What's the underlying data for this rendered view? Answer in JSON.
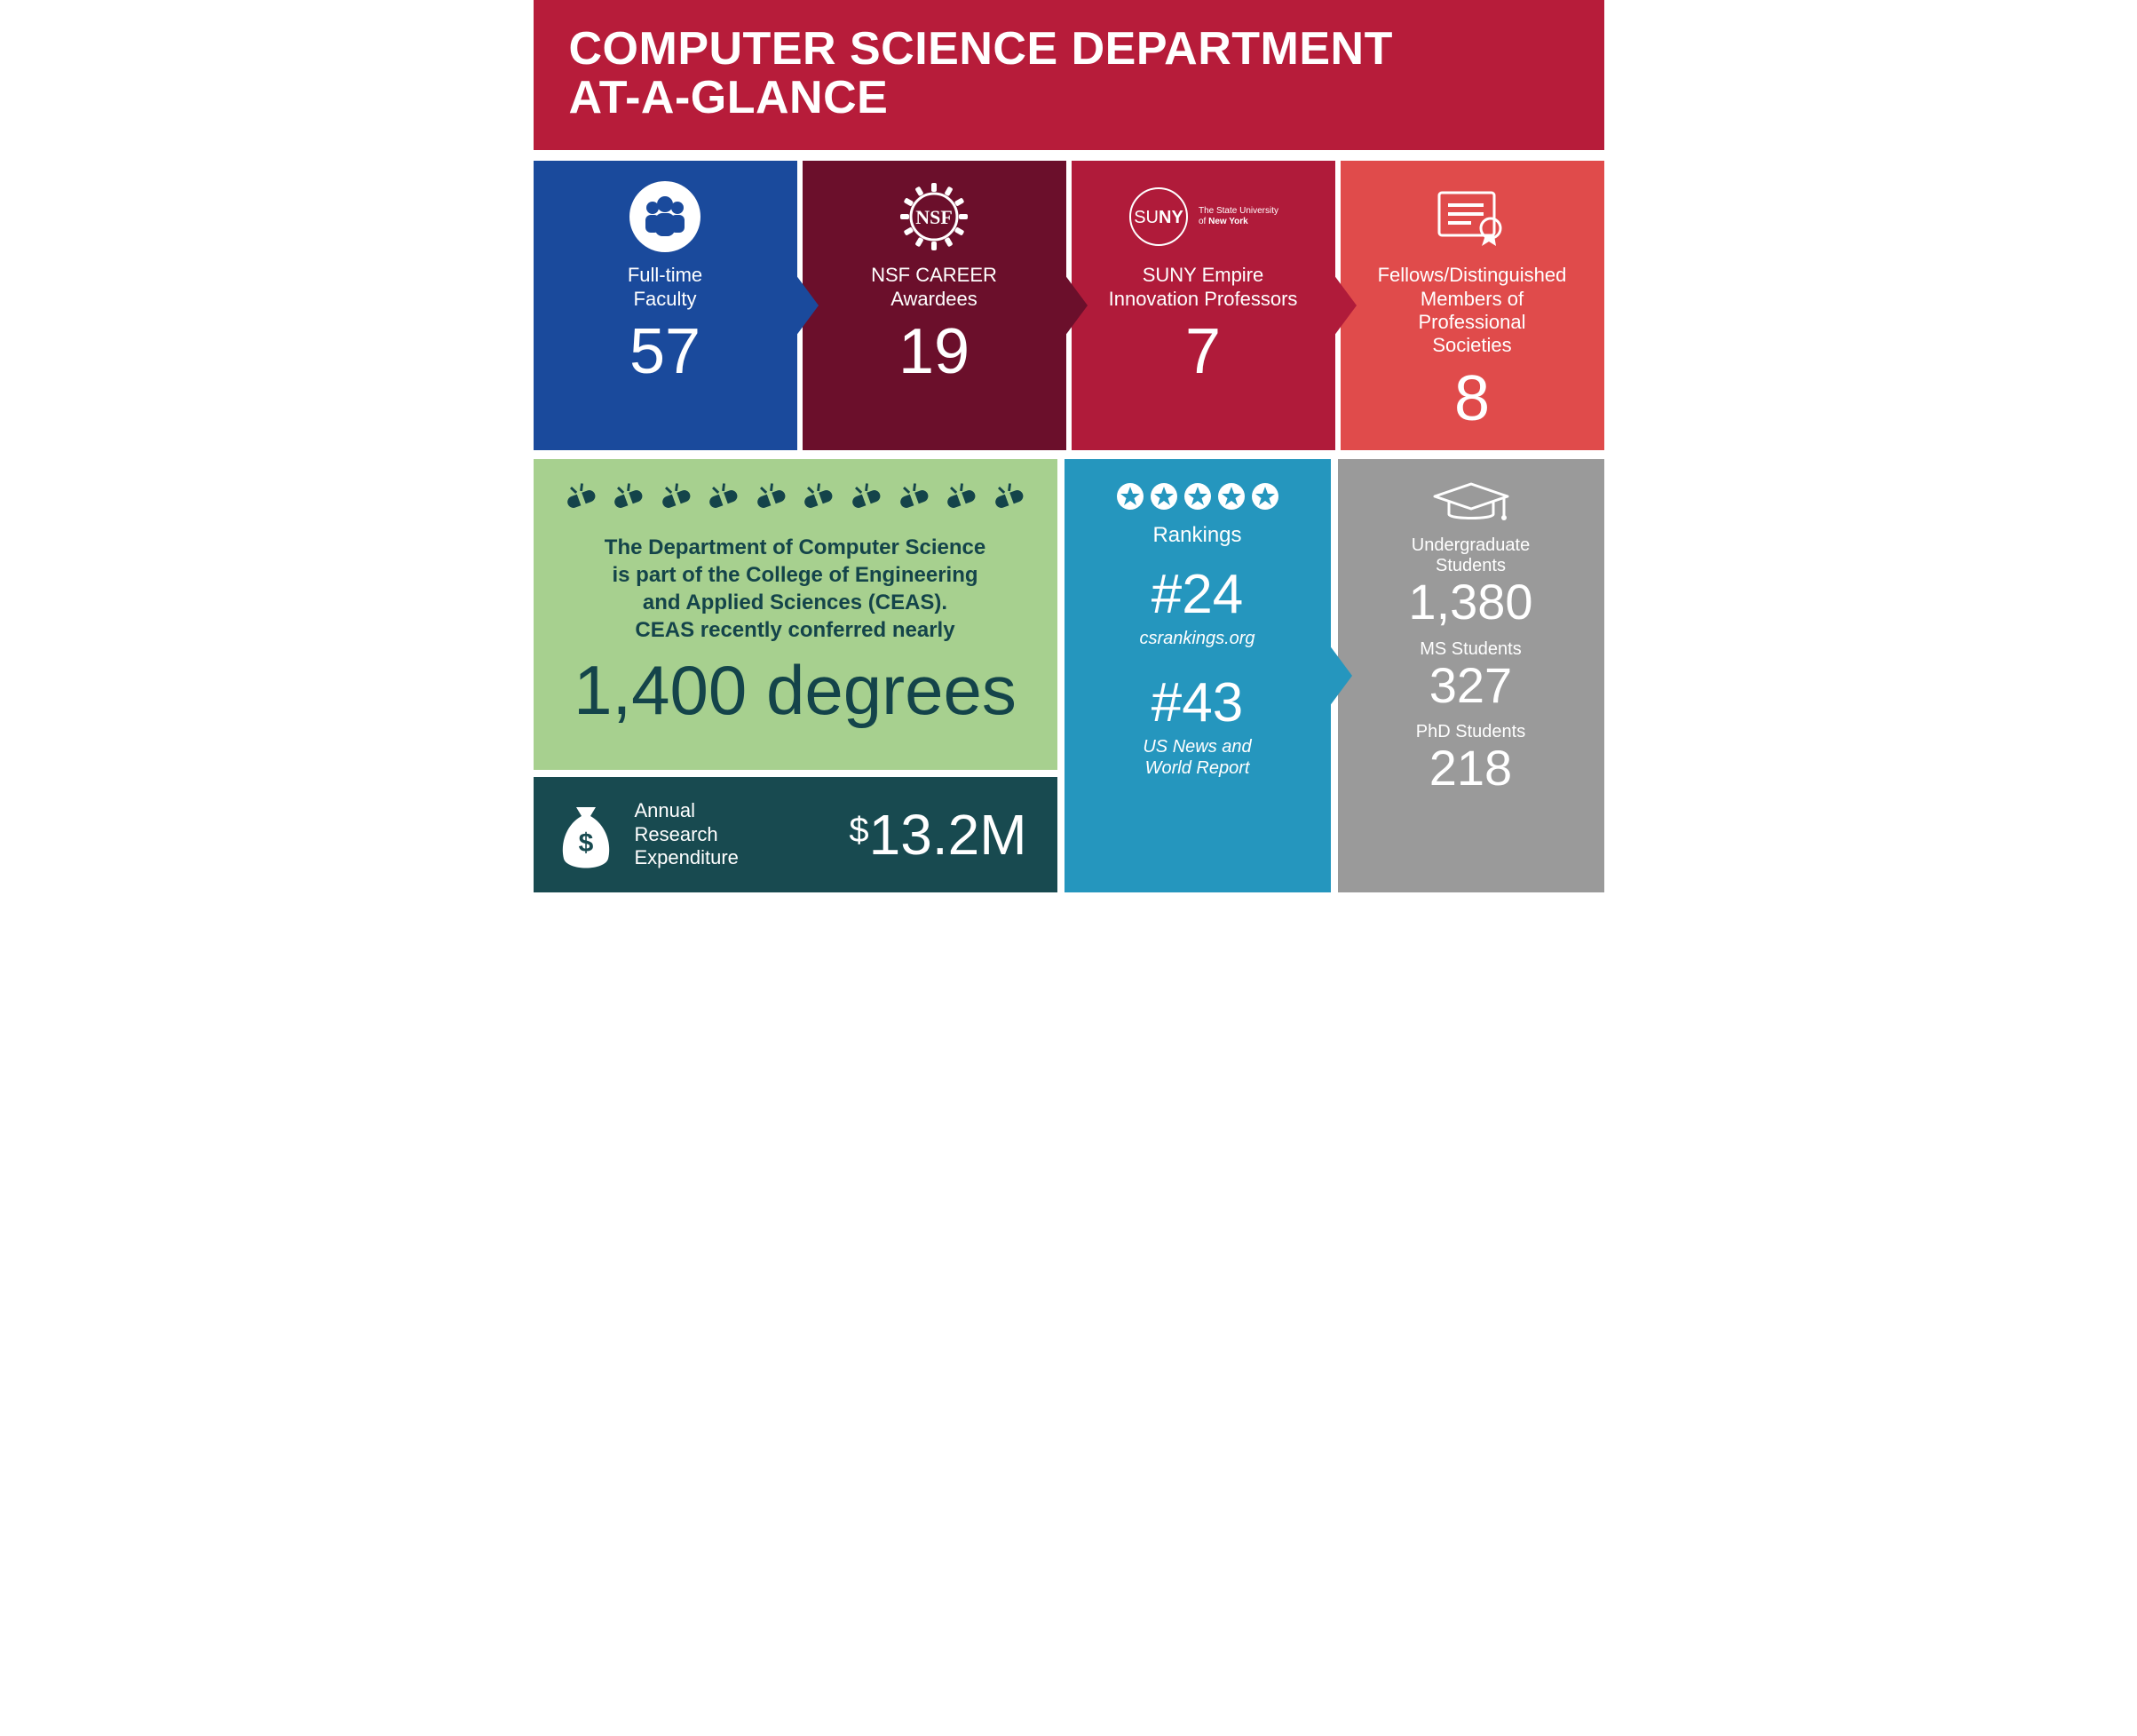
{
  "colors": {
    "header_bg": "#b71c3a",
    "card1_bg": "#1a4a9c",
    "card2_bg": "#6b0f2b",
    "card3_bg": "#b01b3a",
    "card4_bg": "#e04b4b",
    "degrees_bg": "#a7d08f",
    "degrees_text": "#14444a",
    "expend_bg": "#184a50",
    "rank_bg": "#2596be",
    "students_bg": "#9a9a9a"
  },
  "header": {
    "title": "COMPUTER SCIENCE DEPARTMENT\nAT-A-GLANCE"
  },
  "cards": [
    {
      "icon": "people-icon",
      "label": "Full-time\nFaculty",
      "value": "57"
    },
    {
      "icon": "nsf-icon",
      "label": "NSF CAREER\nAwardees",
      "value": "19"
    },
    {
      "icon": "suny-icon",
      "suny_sub1": "The State University",
      "suny_sub2": "of New York",
      "label": "SUNY Empire\nInnovation Professors",
      "value": "7"
    },
    {
      "icon": "certificate-icon",
      "label": "Fellows/Distinguished\nMembers of\nProfessional\nSocieties",
      "value": "8"
    }
  ],
  "degrees": {
    "diploma_count": 10,
    "text": "The Department of Computer Science\nis part of the College of Engineering\nand Applied Sciences (CEAS).\nCEAS recently conferred nearly",
    "big": "1,400 degrees"
  },
  "expenditure": {
    "icon": "moneybag-icon",
    "label": "Annual\nResearch\nExpenditure",
    "currency": "$",
    "value": "13.2M"
  },
  "rankings": {
    "star_count": 5,
    "title": "Rankings",
    "items": [
      {
        "num": "#24",
        "source": "csrankings.org"
      },
      {
        "num": "#43",
        "source": "US News and\nWorld Report"
      }
    ]
  },
  "students": {
    "icon": "gradcap-icon",
    "items": [
      {
        "label": "Undergraduate\nStudents",
        "value": "1,380"
      },
      {
        "label": "MS Students",
        "value": "327"
      },
      {
        "label": "PhD Students",
        "value": "218"
      }
    ]
  }
}
